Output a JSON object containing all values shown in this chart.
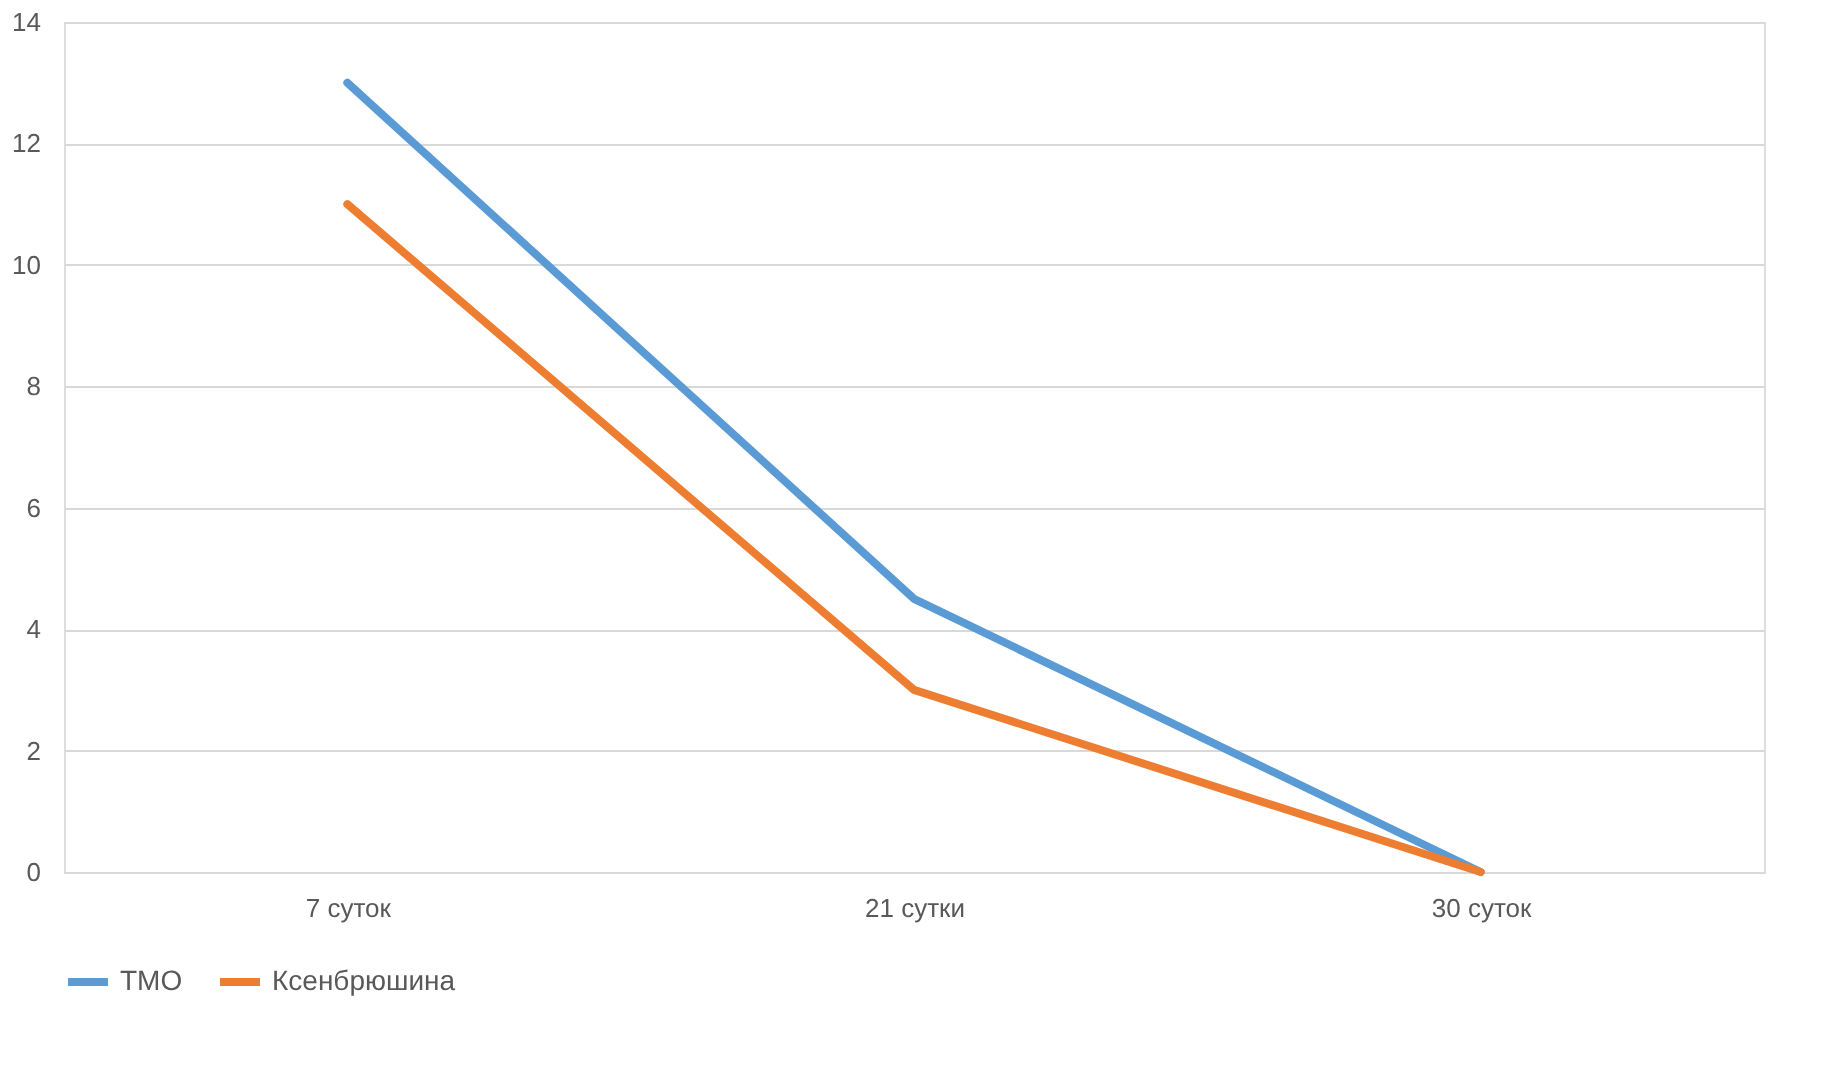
{
  "chart_data": {
    "type": "line",
    "categories": [
      "7 суток",
      "21 сутки",
      "30 суток"
    ],
    "series": [
      {
        "name": "ТМО",
        "color": "#5b9bd5",
        "values": [
          13,
          4.5,
          0
        ]
      },
      {
        "name": "Ксенбрюшина",
        "color": "#ed7d31",
        "values": [
          11,
          3,
          0
        ]
      }
    ],
    "ylim": [
      0,
      14
    ],
    "yticks": [
      0,
      2,
      4,
      6,
      8,
      10,
      12,
      14
    ],
    "grid": "y",
    "legend": "bottom",
    "marker": "none",
    "line_style": "solid"
  }
}
